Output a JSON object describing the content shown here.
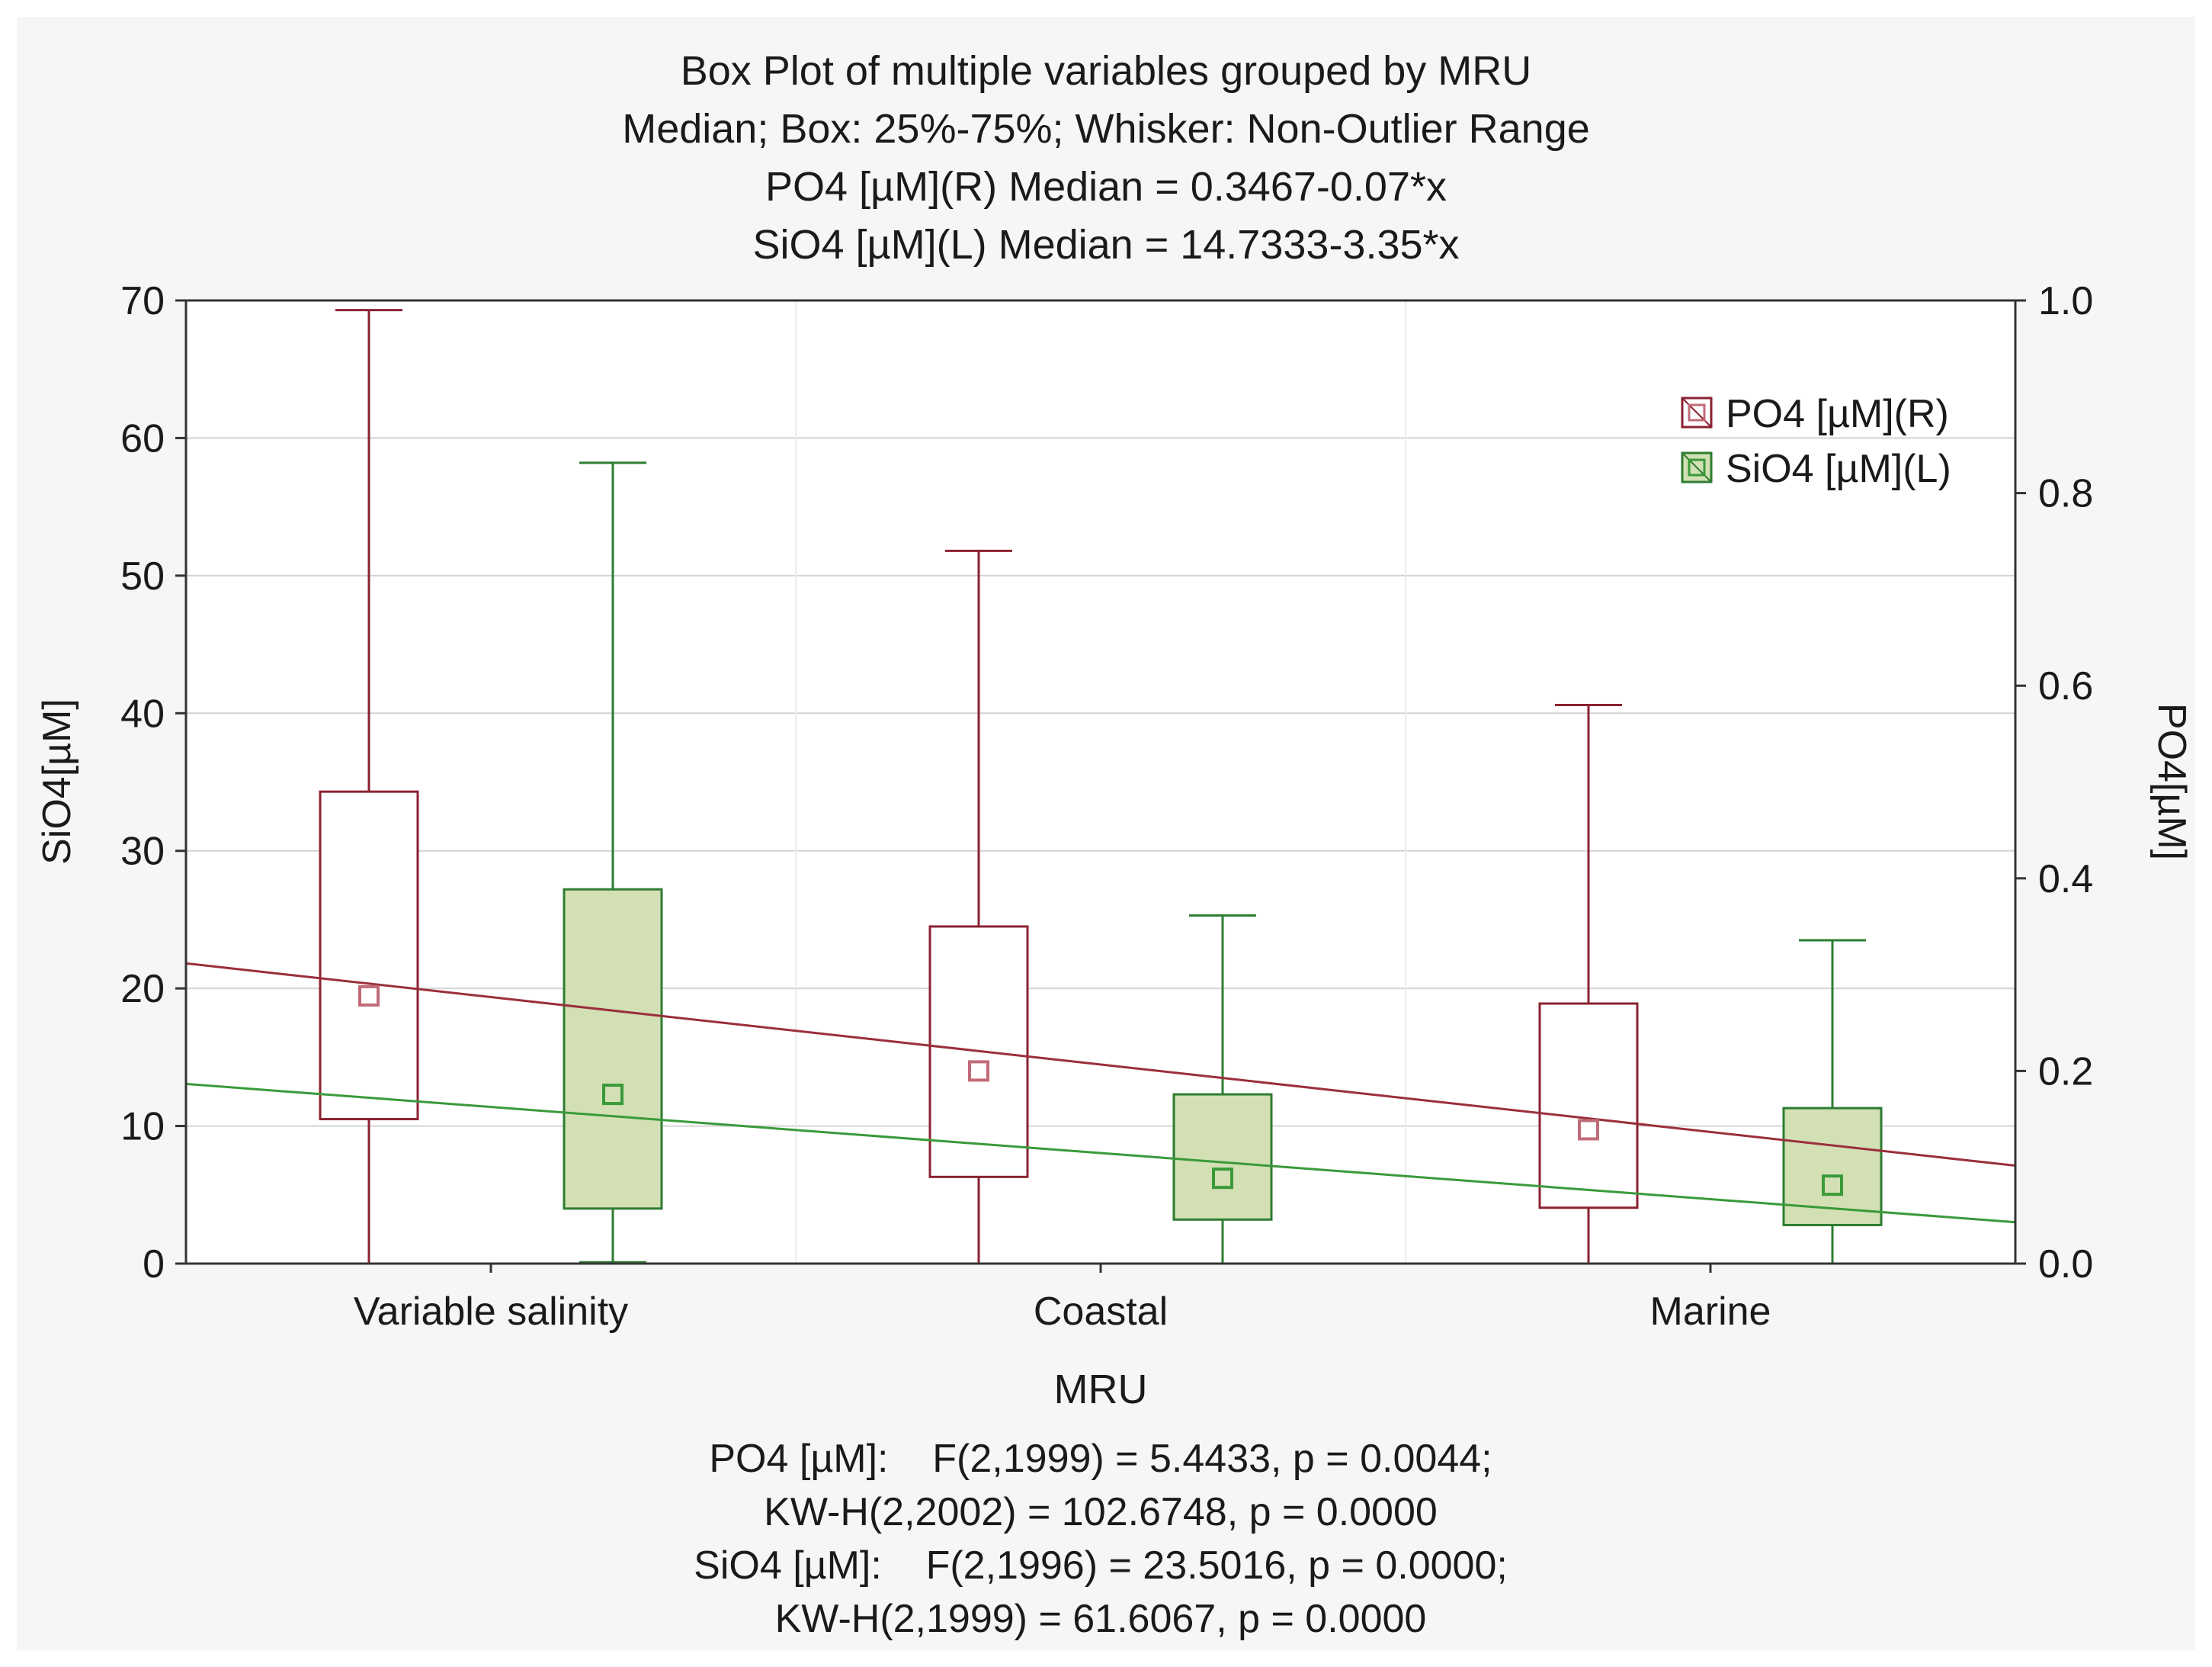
{
  "chart_data": {
    "type": "box",
    "title_lines": [
      "Box Plot of multiple variables grouped by  MRU",
      "Median; Box: 25%-75%; Whisker: Non-Outlier Range",
      "PO4 [µM](R) Median = 0.3467-0.07*x",
      "SiO4 [µM](L) Median = 14.7333-3.35*x"
    ],
    "xlabel": "MRU",
    "ylabel_left": "SiO4[µM]",
    "ylabel_right": "PO4[µM]",
    "categories": [
      "Variable salinity",
      "Coastal",
      "Marine"
    ],
    "y_left": {
      "range": [
        0,
        70
      ],
      "ticks": [
        "0",
        "10",
        "20",
        "30",
        "40",
        "50",
        "60",
        "70"
      ]
    },
    "y_right": {
      "range": [
        0.0,
        1.0
      ],
      "ticks": [
        "0.0",
        "0.2",
        "0.4",
        "0.6",
        "0.8",
        "1.0"
      ]
    },
    "series": [
      {
        "name": "PO4 [µM](R)",
        "axis": "right",
        "color": "#8b2231",
        "fill": "#ffffff",
        "marker_color": "#c06b78",
        "boxes": [
          {
            "category": "Variable salinity",
            "whisker_low": 0.0,
            "q1": 0.15,
            "median": 0.278,
            "q3": 0.49,
            "whisker_high": 0.99
          },
          {
            "category": "Coastal",
            "whisker_low": 0.0,
            "q1": 0.09,
            "median": 0.2,
            "q3": 0.35,
            "whisker_high": 0.74
          },
          {
            "category": "Marine",
            "whisker_low": 0.0,
            "q1": 0.058,
            "median": 0.139,
            "q3": 0.27,
            "whisker_high": 0.58
          }
        ],
        "trend": {
          "intercept": 0.3467,
          "slope": -0.07
        }
      },
      {
        "name": "SiO4 [µM](L)",
        "axis": "left",
        "color": "#2e7d32",
        "fill": "#d2e0b4",
        "marker_color": "#3a9a3a",
        "boxes": [
          {
            "category": "Variable salinity",
            "whisker_low": 0.1,
            "q1": 4.0,
            "median": 12.3,
            "q3": 27.2,
            "whisker_high": 58.2
          },
          {
            "category": "Coastal",
            "whisker_low": 0.0,
            "q1": 3.2,
            "median": 6.2,
            "q3": 12.3,
            "whisker_high": 25.3
          },
          {
            "category": "Marine",
            "whisker_low": 0.0,
            "q1": 2.8,
            "median": 5.7,
            "q3": 11.3,
            "whisker_high": 23.5
          }
        ],
        "trend": {
          "intercept": 14.7333,
          "slope": -3.35
        }
      }
    ],
    "legend_position": "top-right",
    "grid": true,
    "stats_lines": [
      "PO4 [µM]:    F(2,1999) = 5.4433, p = 0.0044;",
      "KW-H(2,2002) = 102.6748, p = 0.0000",
      "SiO4 [µM]:    F(2,1996) = 23.5016, p = 0.0000;",
      "KW-H(2,1999) = 61.6067, p = 0.0000"
    ]
  }
}
